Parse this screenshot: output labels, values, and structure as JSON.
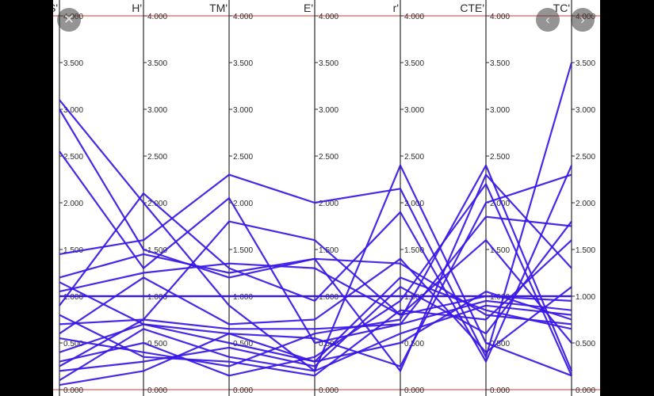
{
  "viewer": {
    "close_glyph": "✕",
    "prev_glyph": "‹",
    "next_glyph": "›"
  },
  "colors": {
    "line": "#3a16e6",
    "axis": "#2a2a2a",
    "limit": "#e0302a",
    "text": "#2b2b2b"
  },
  "chart_data": {
    "type": "parallel-coordinates",
    "axes": [
      "UTS'",
      "H'",
      "TM'",
      "E'",
      "r'",
      "CTE'",
      "TC'"
    ],
    "ylim": [
      0,
      4
    ],
    "tick_values": [
      0,
      0.5,
      1,
      1.5,
      2,
      2.5,
      3,
      3.5,
      4
    ],
    "tick_labels": [
      "0.000",
      "0.500",
      "1.000",
      "1.500",
      "2.000",
      "2.500",
      "3.000",
      "3.500",
      "4.000"
    ],
    "series": [
      {
        "values": [
          1,
          1,
          1,
          1,
          1,
          1,
          1
        ]
      },
      {
        "values": [
          1,
          1,
          1,
          1,
          1,
          1,
          1
        ]
      },
      {
        "values": [
          3.1,
          2.0,
          0.9,
          0.2,
          2.4,
          0.5,
          0.15
        ]
      },
      {
        "values": [
          3.0,
          1.5,
          1.2,
          1.4,
          0.2,
          2.3,
          1.3
        ]
      },
      {
        "values": [
          2.55,
          1.3,
          2.05,
          0.5,
          0.7,
          1.85,
          1.75
        ]
      },
      {
        "values": [
          1.45,
          1.6,
          2.3,
          2.0,
          2.15,
          0.35,
          3.5
        ]
      },
      {
        "values": [
          1.2,
          1.45,
          1.25,
          1.4,
          1.35,
          0.8,
          0.7
        ]
      },
      {
        "values": [
          1.05,
          1.25,
          1.35,
          1.3,
          0.8,
          1.0,
          0.95
        ]
      },
      {
        "values": [
          0.9,
          2.1,
          1.3,
          0.95,
          1.9,
          0.3,
          2.4
        ]
      },
      {
        "values": [
          0.7,
          0.75,
          1.8,
          1.6,
          0.8,
          1.6,
          0.5
        ]
      },
      {
        "values": [
          0.55,
          0.4,
          0.25,
          0.6,
          0.75,
          2.4,
          0.2
        ]
      },
      {
        "values": [
          0.4,
          0.7,
          0.6,
          0.3,
          1.2,
          0.85,
          0.65
        ]
      },
      {
        "values": [
          0.3,
          0.5,
          0.15,
          0.35,
          0.95,
          2.2,
          0.15
        ]
      },
      {
        "values": [
          0.2,
          0.3,
          0.45,
          0.25,
          1.1,
          0.6,
          1.8
        ]
      },
      {
        "values": [
          0.1,
          0.65,
          0.35,
          0.2,
          0.6,
          0.9,
          0.8
        ]
      },
      {
        "values": [
          0.05,
          0.2,
          0.6,
          0.55,
          0.25,
          2.0,
          2.3
        ]
      },
      {
        "values": [
          0.8,
          0.35,
          0.3,
          0.15,
          0.85,
          0.75,
          1.6
        ]
      },
      {
        "values": [
          1.15,
          0.7,
          0.5,
          0.3,
          0.5,
          1.05,
          0.75
        ]
      },
      {
        "values": [
          0.6,
          1.2,
          0.7,
          0.75,
          1.4,
          0.4,
          1.1
        ]
      },
      {
        "values": [
          0.25,
          0.75,
          0.65,
          0.65,
          0.7,
          0.95,
          0.85
        ]
      }
    ]
  }
}
